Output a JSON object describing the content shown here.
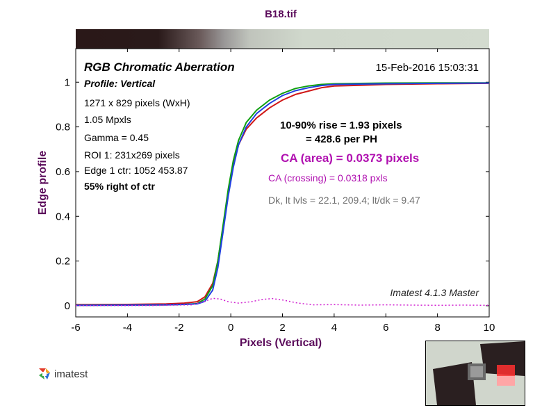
{
  "chart_data": {
    "type": "line",
    "title": "B18.tif",
    "xlabel": "Pixels (Vertical)",
    "ylabel": "Edge profile",
    "xlim": [
      -6,
      10
    ],
    "ylim": [
      -0.05,
      1.15
    ],
    "xticks": [
      "-6",
      "-4",
      "-2",
      "0",
      "2",
      "4",
      "6",
      "8",
      "10"
    ],
    "yticks": [
      "0",
      "0.2",
      "0.4",
      "0.6",
      "0.8",
      "1"
    ],
    "grid": false,
    "series": [
      {
        "color": "#d01818",
        "points": [
          [
            -6,
            0.005
          ],
          [
            -4,
            0.006
          ],
          [
            -2.5,
            0.008
          ],
          [
            -1.8,
            0.012
          ],
          [
            -1.3,
            0.018
          ],
          [
            -1.0,
            0.04
          ],
          [
            -0.7,
            0.1
          ],
          [
            -0.5,
            0.2
          ],
          [
            -0.3,
            0.35
          ],
          [
            -0.1,
            0.5
          ],
          [
            0.1,
            0.63
          ],
          [
            0.3,
            0.72
          ],
          [
            0.6,
            0.79
          ],
          [
            1,
            0.84
          ],
          [
            1.5,
            0.885
          ],
          [
            2,
            0.92
          ],
          [
            2.5,
            0.945
          ],
          [
            3,
            0.96
          ],
          [
            3.5,
            0.975
          ],
          [
            4,
            0.983
          ],
          [
            5,
            0.986
          ],
          [
            6,
            0.99
          ],
          [
            8,
            0.993
          ],
          [
            10,
            0.995
          ]
        ]
      },
      {
        "color": "#10a010",
        "points": [
          [
            -6,
            0.002
          ],
          [
            -4,
            0.003
          ],
          [
            -2.5,
            0.004
          ],
          [
            -1.8,
            0.006
          ],
          [
            -1.3,
            0.01
          ],
          [
            -1.0,
            0.03
          ],
          [
            -0.7,
            0.09
          ],
          [
            -0.5,
            0.2
          ],
          [
            -0.3,
            0.36
          ],
          [
            -0.1,
            0.52
          ],
          [
            0.1,
            0.65
          ],
          [
            0.3,
            0.74
          ],
          [
            0.6,
            0.82
          ],
          [
            1,
            0.875
          ],
          [
            1.5,
            0.92
          ],
          [
            2,
            0.95
          ],
          [
            2.5,
            0.972
          ],
          [
            3,
            0.983
          ],
          [
            3.5,
            0.99
          ],
          [
            4,
            0.993
          ],
          [
            6,
            0.996
          ],
          [
            8,
            0.997
          ],
          [
            10,
            0.997
          ]
        ]
      },
      {
        "color": "#2040e0",
        "points": [
          [
            -6,
            0.002
          ],
          [
            -4,
            0.003
          ],
          [
            -2.5,
            0.004
          ],
          [
            -1.8,
            0.006
          ],
          [
            -1.3,
            0.008
          ],
          [
            -1.0,
            0.02
          ],
          [
            -0.7,
            0.07
          ],
          [
            -0.5,
            0.17
          ],
          [
            -0.3,
            0.33
          ],
          [
            -0.1,
            0.49
          ],
          [
            0.1,
            0.62
          ],
          [
            0.3,
            0.72
          ],
          [
            0.6,
            0.8
          ],
          [
            1,
            0.86
          ],
          [
            1.5,
            0.905
          ],
          [
            2,
            0.94
          ],
          [
            2.5,
            0.962
          ],
          [
            3,
            0.975
          ],
          [
            3.5,
            0.985
          ],
          [
            4,
            0.99
          ],
          [
            6,
            0.993
          ],
          [
            8,
            0.995
          ],
          [
            10,
            0.996
          ]
        ]
      },
      {
        "color": "#d020d0",
        "dashed": true,
        "points": [
          [
            -6,
            0.0
          ],
          [
            -3,
            0.001
          ],
          [
            -1.5,
            0.004
          ],
          [
            -1.0,
            0.02
          ],
          [
            -0.7,
            0.033
          ],
          [
            -0.4,
            0.03
          ],
          [
            -0.1,
            0.018
          ],
          [
            0.3,
            0.012
          ],
          [
            0.8,
            0.018
          ],
          [
            1.2,
            0.028
          ],
          [
            1.6,
            0.032
          ],
          [
            2.0,
            0.026
          ],
          [
            2.6,
            0.012
          ],
          [
            3.2,
            0.004
          ],
          [
            4,
            0.005
          ],
          [
            5,
            0.003
          ],
          [
            6,
            0.004
          ],
          [
            7,
            0.003
          ],
          [
            8,
            0.002
          ],
          [
            9,
            0.003
          ],
          [
            10,
            0.002
          ]
        ]
      }
    ],
    "annotations": {
      "left": [
        {
          "text": "RGB Chromatic Aberration",
          "style": "bold-italic-large"
        },
        {
          "text": "Profile: Vertical",
          "style": "bold-italic"
        },
        {
          "text": "1271 x 829 pixels (WxH)",
          "style": "normal"
        },
        {
          "text": "1.05 Mpxls",
          "style": "normal"
        },
        {
          "text": "Gamma = 0.45",
          "style": "normal"
        },
        {
          "text": "ROI 1: 231x269 pixels",
          "style": "normal"
        },
        {
          "text": "Edge 1 ctr: 1052  453.87",
          "style": "normal"
        },
        {
          "text": "55% right of ctr",
          "style": "bold"
        }
      ],
      "timestamp": "15-Feb-2016 15:03:31",
      "rise_line1": "10-90% rise = 1.93 pixels",
      "rise_line2": "= 428.6 per PH",
      "ca_area": "CA (area) = 0.0373 pixels",
      "ca_crossing": "CA (crossing) = 0.0318 pxls",
      "dk_levels": "Dk, lt lvls = 22.1, 209.4;  lt/dk = 9.47",
      "version": "Imatest 4.1.3  Master"
    },
    "colors": {
      "title": "#5a0a5a",
      "ca_area": "#b010b0",
      "ca_crossing": "#b010b0",
      "dk_levels": "#707070"
    }
  },
  "logo": {
    "text": "imatest"
  }
}
